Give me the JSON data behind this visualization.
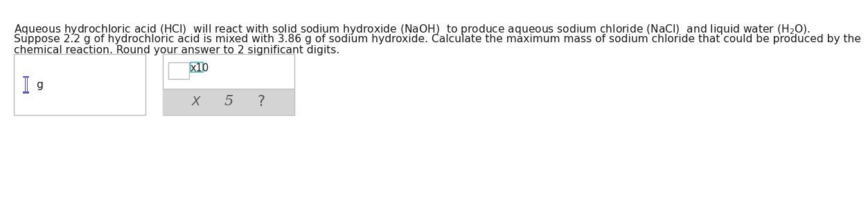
{
  "background_color": "#ffffff",
  "text_color": "#1a1a1a",
  "line1": "Aqueous hydrochloric acid $\\mathregular{(HCl)}$  will react with solid sodium hydroxide $\\mathregular{(NaOH)}$  to produce aqueous sodium chloride $\\mathregular{(NaCl)}$  and liquid water $\\mathregular{(H_2O)}$.",
  "line2": "Suppose 2.2 g of hydrochloric acid is mixed with 3.86 g of sodium hydroxide. Calculate the maximum mass of sodium chloride that could be produced by the",
  "line3": "chemical reaction. Round your answer to 2 significant digits.",
  "label_g": "g",
  "label_x10": "x10",
  "icon_x": "X",
  "icon_undo": "Ɔ",
  "icon_question": "?",
  "box_border_color": "#bbbbbb",
  "box1_fill": "#ffffff",
  "box2_fill": "#ffffff",
  "gray_fill": "#d4d4d4",
  "cursor_color": "#5555cc",
  "exp_box_color": "#44bbbb",
  "fontsize_main": 11.2,
  "fontsize_icons": 13,
  "fontsize_label": 10.5
}
